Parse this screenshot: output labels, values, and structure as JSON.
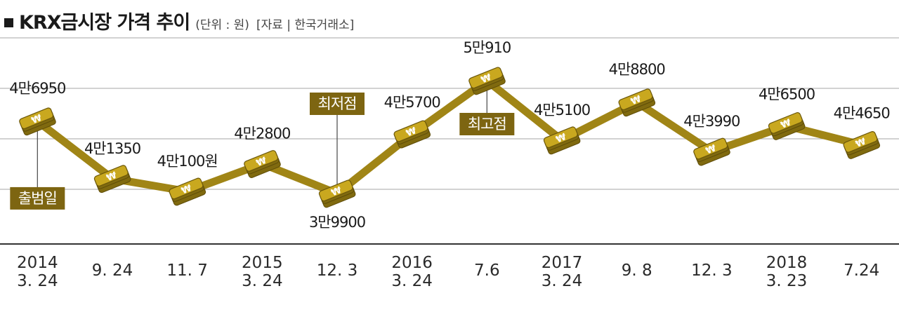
{
  "header": {
    "title": "KRX금시장 가격 추이",
    "unit": "(단위 : 원)",
    "source": "[자료 | 한국거래소]"
  },
  "colors": {
    "line": "#a08516",
    "gold_face": "#c9a81f",
    "gold_dark": "#806a0f",
    "box": "#7d6511",
    "grid": "#b8b8b8",
    "axis": "#333333"
  },
  "chart_data": {
    "type": "line",
    "title": "KRX금시장 가격 추이",
    "ylabel": "",
    "xlabel": "",
    "ylim": [
      38000,
      52500
    ],
    "grid": true,
    "categories": [
      [
        "2014",
        "3. 24"
      ],
      [
        "9. 24"
      ],
      [
        "11. 7"
      ],
      [
        "2015",
        "3. 24"
      ],
      [
        "12. 3"
      ],
      [
        "2016",
        "3. 24"
      ],
      [
        "7.6"
      ],
      [
        "2017",
        "3. 24"
      ],
      [
        "9. 8"
      ],
      [
        "12. 3"
      ],
      [
        "2018",
        "3. 23"
      ],
      [
        "7.24"
      ]
    ],
    "series": [
      {
        "values": [
          46950,
          41350,
          40100,
          42800,
          39900,
          45700,
          50910,
          45100,
          48800,
          43990,
          46500,
          44650
        ],
        "labels": [
          "4만6950",
          "4만1350",
          "4만100원",
          "4만2800",
          "3만9900",
          "4만5700",
          "5만910",
          "4만5100",
          "4만8800",
          "4만3990",
          "4만6500",
          "4만4650"
        ]
      }
    ],
    "annotations": [
      {
        "text": "출범일",
        "index": 0
      },
      {
        "text": "최저점",
        "index": 4
      },
      {
        "text": "최고점",
        "index": 6
      }
    ]
  }
}
